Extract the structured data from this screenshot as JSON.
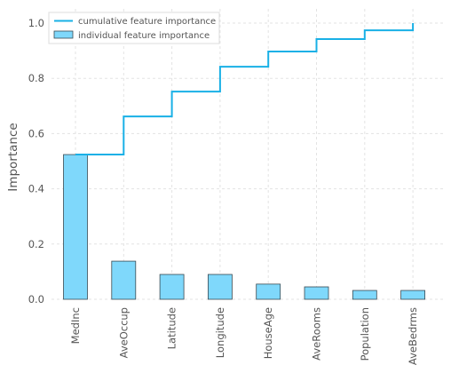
{
  "chart_data": {
    "type": "bar",
    "categories": [
      "MedInc",
      "AveOccup",
      "Latitude",
      "Longitude",
      "HouseAge",
      "AveRooms",
      "Population",
      "AveBedrms"
    ],
    "series": [
      {
        "name": "individual feature importance",
        "kind": "bar",
        "values": [
          0.524,
          0.138,
          0.09,
          0.09,
          0.055,
          0.045,
          0.032,
          0.032
        ]
      },
      {
        "name": "cumulative feature importance",
        "kind": "step",
        "values": [
          0.524,
          0.662,
          0.752,
          0.842,
          0.897,
          0.942,
          0.974,
          1.0
        ]
      }
    ],
    "title": "",
    "xlabel": "",
    "ylabel": "Importance",
    "ylim": [
      0,
      1.05
    ],
    "yticks": [
      0.0,
      0.2,
      0.4,
      0.6,
      0.8,
      1.0
    ],
    "ytick_labels": [
      "0.0",
      "0.2",
      "0.4",
      "0.6",
      "0.8",
      "1.0"
    ],
    "grid": true,
    "legend_position": "top-left",
    "colors": {
      "bar_fill": "#7fd8fb",
      "bar_edge": "#3a4a52",
      "line": "#19b0e6",
      "grid": "#e3e3e3",
      "text": "#555555"
    }
  }
}
